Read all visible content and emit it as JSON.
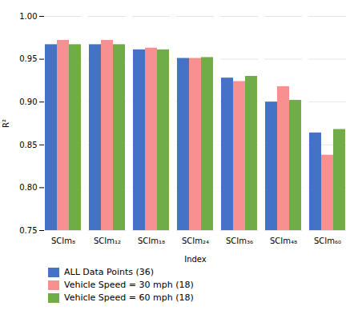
{
  "chart_data": {
    "type": "bar",
    "categories": [
      "SCIm₈",
      "SCIm₁₂",
      "SCIm₁₈",
      "SCIm₂₄",
      "SCIm₃₆",
      "SCIm₄₈",
      "SCIm₆₀"
    ],
    "series": [
      {
        "name": "ALL Data Points (36)",
        "color": "#4472C4",
        "values": [
          0.967,
          0.967,
          0.961,
          0.951,
          0.928,
          0.9,
          0.864
        ]
      },
      {
        "name": "Vehicle Speed = 30 mph (18)",
        "color": "#F79191",
        "values": [
          0.972,
          0.972,
          0.963,
          0.951,
          0.924,
          0.918,
          0.838
        ]
      },
      {
        "name": "Vehicle Speed = 60 mph (18)",
        "color": "#70AD47",
        "values": [
          0.967,
          0.967,
          0.961,
          0.952,
          0.93,
          0.902,
          0.868
        ]
      }
    ],
    "xlabel": "Index",
    "ylabel": "R²",
    "ylim": [
      0.75,
      1.0
    ],
    "yticks": [
      0.75,
      {
        "value": 0.8,
        "label": "0.80"
      },
      0.85,
      {
        "value": 0.9,
        "label": "0.90"
      },
      0.95,
      {
        "value": 1.0,
        "label": "1.00"
      }
    ],
    "grid": true,
    "legend": "bottom"
  }
}
